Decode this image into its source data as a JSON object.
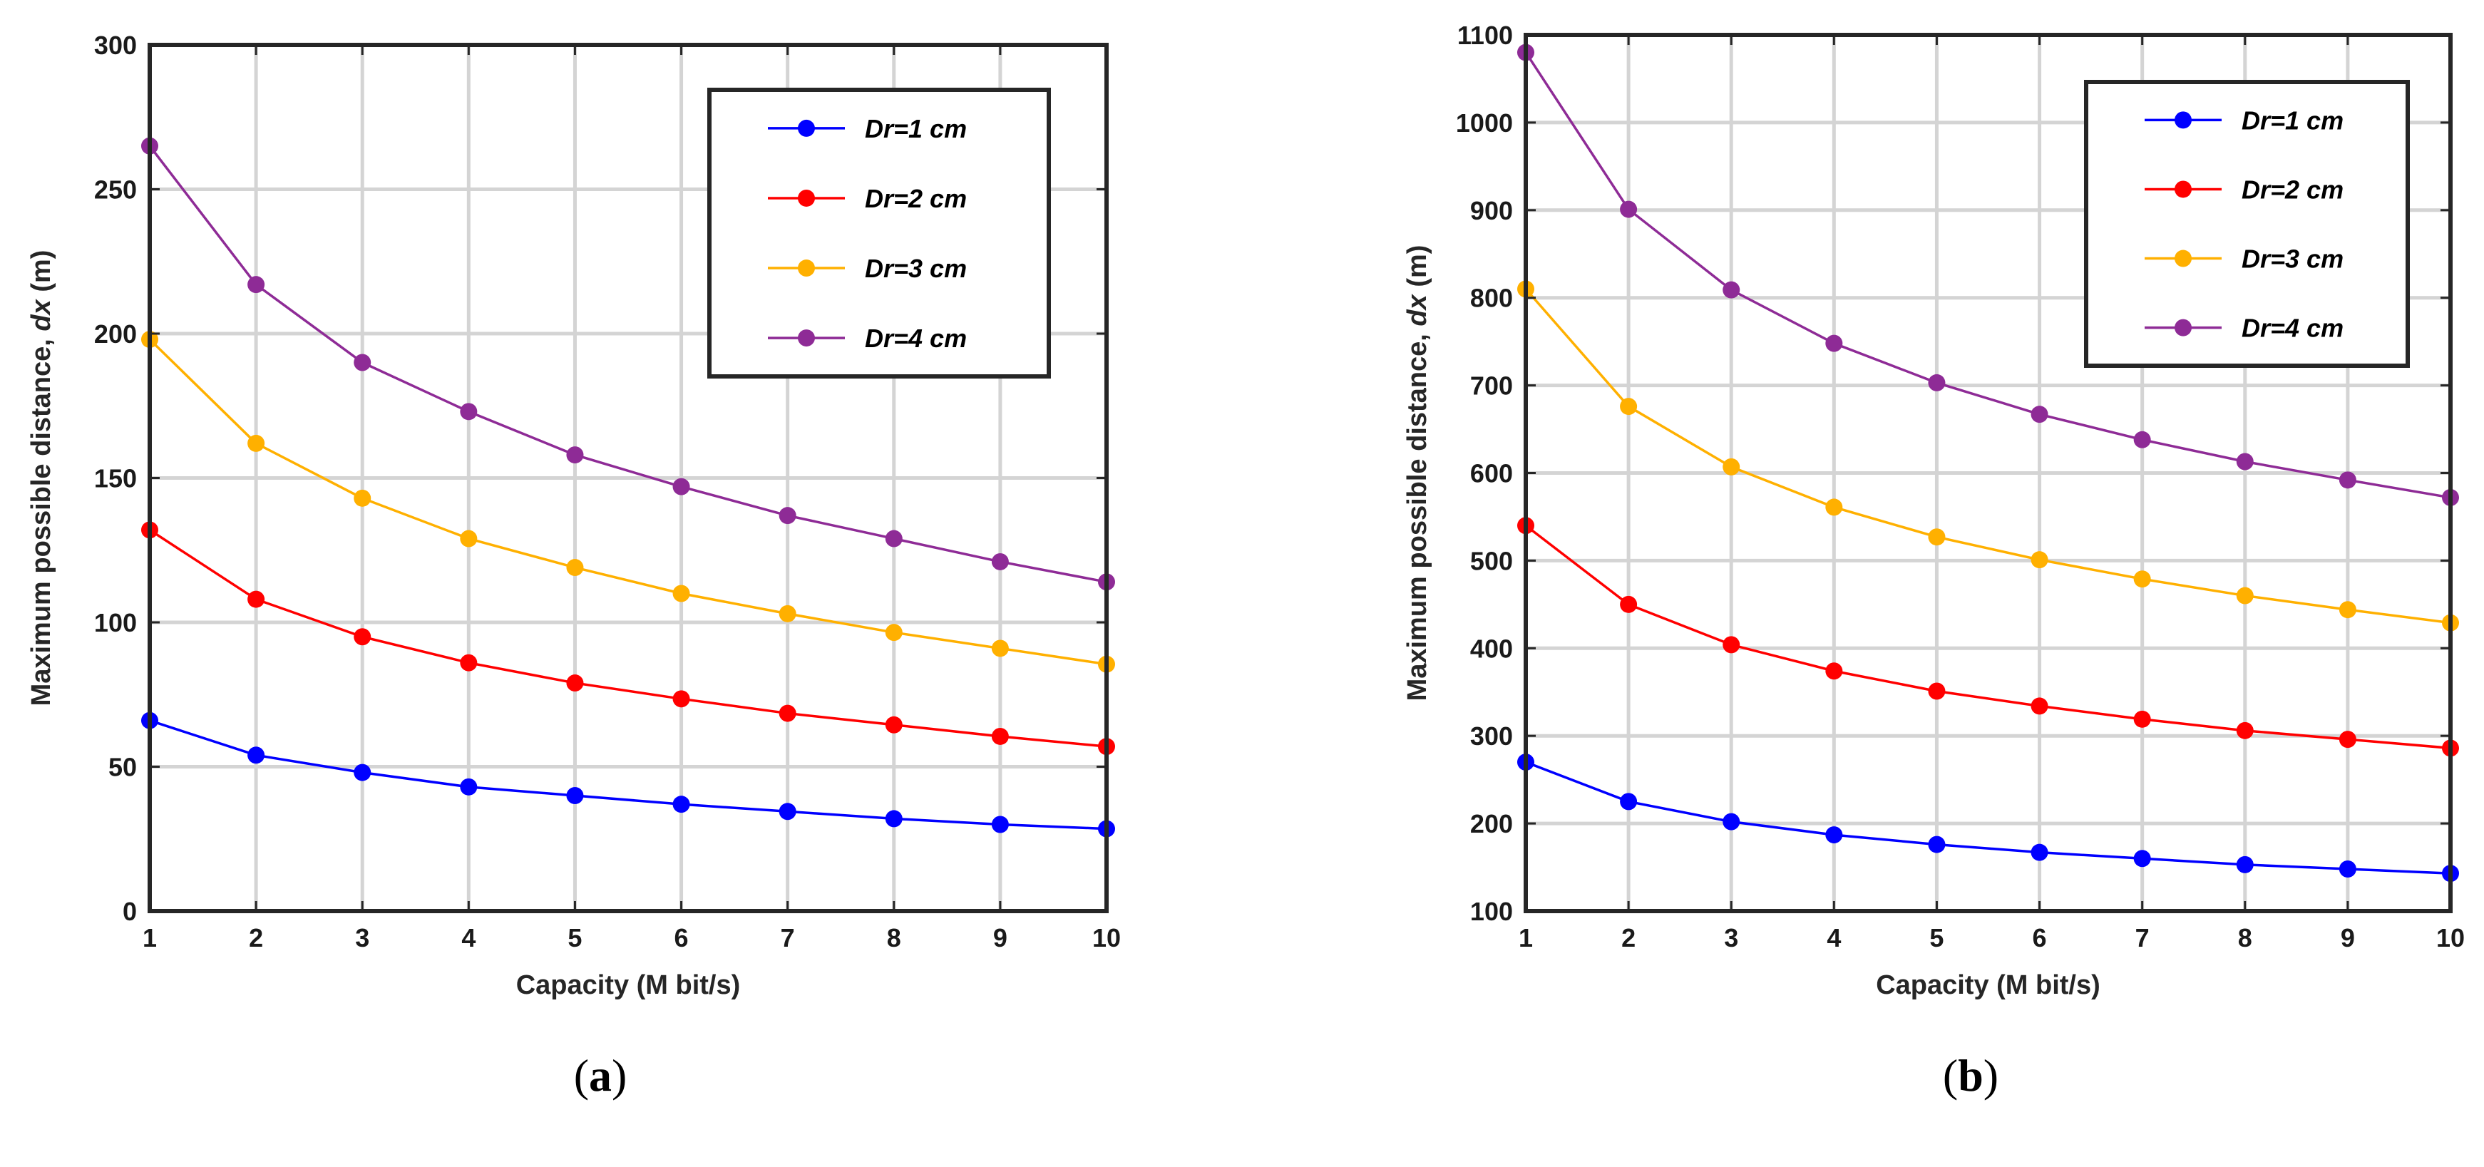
{
  "chart_data": [
    {
      "type": "line",
      "panel_label": "a",
      "xlabel": "Capacity (M bit/s)",
      "ylabel_prefix": "Maximum possible distance,",
      "ylabel_var": "dx",
      "ylabel_unit": "(m)",
      "xlim": [
        1,
        10
      ],
      "ylim": [
        0,
        300
      ],
      "xticks": [
        1,
        2,
        3,
        4,
        5,
        6,
        7,
        8,
        9,
        10
      ],
      "yticks": [
        0,
        50,
        100,
        150,
        200,
        250,
        300
      ],
      "grid": true,
      "legend_position": "top-right",
      "x": [
        1,
        2,
        3,
        4,
        5,
        6,
        7,
        8,
        9,
        10
      ],
      "series": [
        {
          "name": "Dr=1 cm",
          "color": "#0000ff",
          "values": [
            66,
            54,
            48,
            43,
            40,
            37,
            34.5,
            32,
            30,
            28.5
          ]
        },
        {
          "name": "Dr=2 cm",
          "color": "#ff0000",
          "values": [
            132,
            108,
            95,
            86,
            79,
            73.5,
            68.5,
            64.5,
            60.5,
            57
          ]
        },
        {
          "name": "Dr=3 cm",
          "color": "#ffb000",
          "values": [
            198,
            162,
            143,
            129,
            119,
            110,
            103,
            96.5,
            91,
            85.5
          ]
        },
        {
          "name": "Dr=4 cm",
          "color": "#8e2b96",
          "values": [
            265,
            217,
            190,
            173,
            158,
            147,
            137,
            129,
            121,
            114
          ]
        }
      ]
    },
    {
      "type": "line",
      "panel_label": "b",
      "xlabel": "Capacity (M bit/s)",
      "ylabel_prefix": "Maximum possible distance,",
      "ylabel_var": "dx",
      "ylabel_unit": "(m)",
      "xlim": [
        1,
        10
      ],
      "ylim": [
        100,
        1100
      ],
      "xticks": [
        1,
        2,
        3,
        4,
        5,
        6,
        7,
        8,
        9,
        10
      ],
      "yticks": [
        100,
        200,
        300,
        400,
        500,
        600,
        700,
        800,
        900,
        1000,
        1100
      ],
      "grid": true,
      "legend_position": "top-right",
      "x": [
        1,
        2,
        3,
        4,
        5,
        6,
        7,
        8,
        9,
        10
      ],
      "series": [
        {
          "name": "Dr=1 cm",
          "color": "#0000ff",
          "values": [
            270,
            225,
            202,
            187,
            176,
            167,
            160,
            153,
            148,
            143
          ]
        },
        {
          "name": "Dr=2 cm",
          "color": "#ff0000",
          "values": [
            540,
            450,
            404,
            374,
            351,
            334,
            319,
            306,
            296,
            286
          ]
        },
        {
          "name": "Dr=3 cm",
          "color": "#ffb000",
          "values": [
            810,
            676,
            607,
            561,
            527,
            501,
            479,
            460,
            444,
            429
          ]
        },
        {
          "name": "Dr=4 cm",
          "color": "#8e2b96",
          "values": [
            1080,
            901,
            809,
            748,
            703,
            667,
            638,
            613,
            592,
            572
          ]
        }
      ]
    }
  ]
}
